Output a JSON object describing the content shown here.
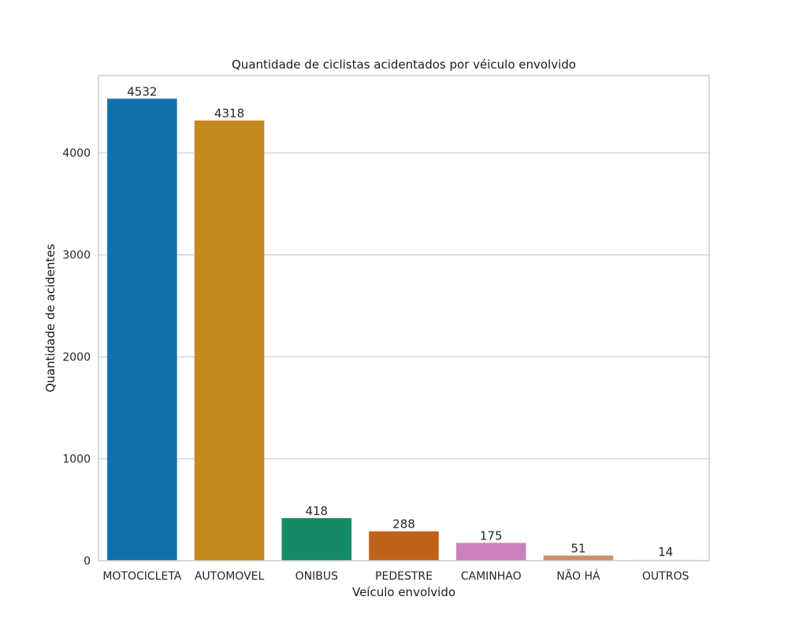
{
  "chart_data": {
    "type": "bar",
    "title": "Quantidade de ciclistas acidentados por véiculo envolvido",
    "xlabel": "Veículo envolvido",
    "ylabel": "Quantidade de acidentes",
    "categories": [
      "MOTOCICLETA",
      "AUTOMOVEL",
      "ONIBUS",
      "PEDESTRE",
      "CAMINHAO",
      "NÃO HÁ",
      "OUTROS"
    ],
    "values": [
      4532,
      4318,
      418,
      288,
      175,
      51,
      14
    ],
    "data_labels": [
      "4532",
      "4318",
      "418",
      "288",
      "175",
      "51",
      "14"
    ],
    "colors": [
      "#1170aa",
      "#c48a1f",
      "#138a68",
      "#c0631a",
      "#cc80bf",
      "#c9926a",
      "#fafafa"
    ],
    "yticks": [
      0,
      1000,
      2000,
      3000,
      4000
    ],
    "ylim": [
      0,
      4758.6
    ],
    "grid": "y",
    "legend": "none"
  }
}
